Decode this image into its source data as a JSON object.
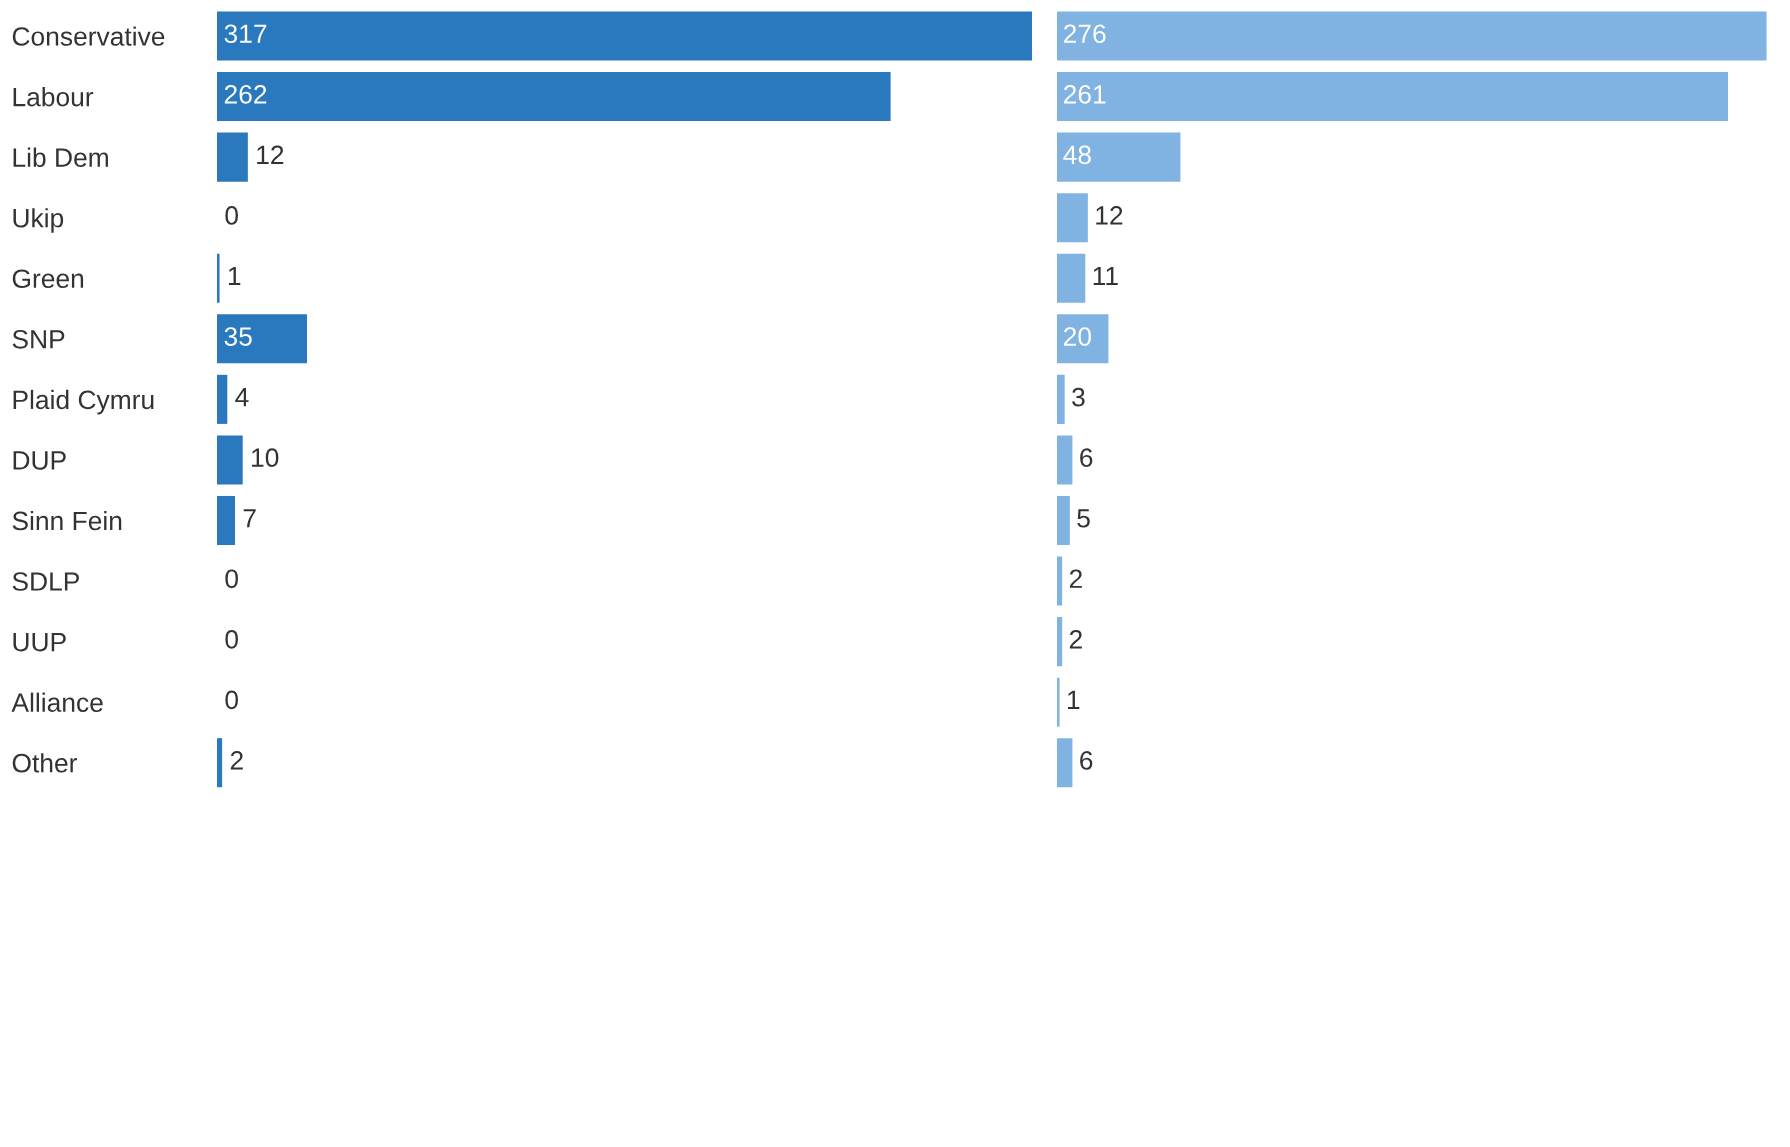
{
  "chart_data": [
    {
      "type": "bar",
      "orientation": "horizontal",
      "categories": [
        "Conservative",
        "Labour",
        "Lib Dem",
        "Ukip",
        "Green",
        "SNP",
        "Plaid Cymru",
        "DUP",
        "Sinn Fein",
        "SDLP",
        "UUP",
        "Alliance",
        "Other"
      ],
      "values": [
        317,
        262,
        12,
        0,
        1,
        35,
        4,
        10,
        7,
        0,
        0,
        0,
        2
      ],
      "color": "#2a78bd",
      "data_labels": true,
      "tick_labels": "y",
      "grid": false
    },
    {
      "type": "bar",
      "orientation": "horizontal",
      "categories": [
        null,
        null,
        null,
        null,
        null,
        null,
        null,
        null,
        null,
        null,
        null,
        null,
        null
      ],
      "values": [
        276,
        261,
        48,
        12,
        11,
        20,
        3,
        6,
        5,
        2,
        2,
        1,
        6
      ],
      "color": "#80b3e1",
      "data_labels": true,
      "tick_labels": false,
      "grid": false
    }
  ]
}
